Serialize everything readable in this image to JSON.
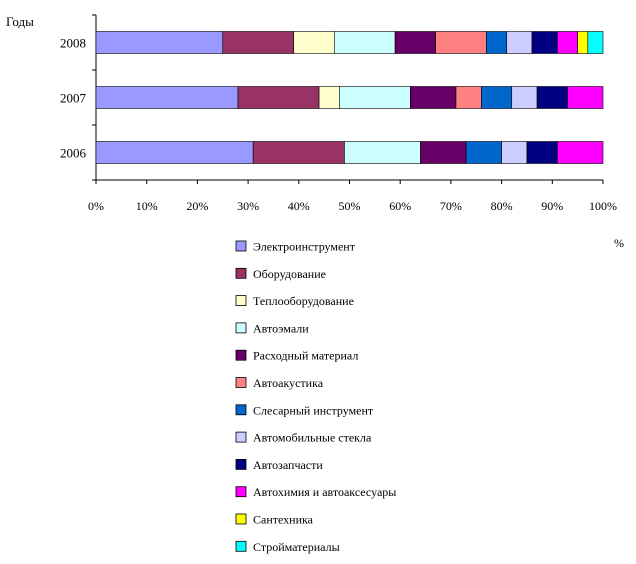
{
  "chart_data": {
    "type": "bar",
    "orientation": "horizontal",
    "stacked": "percent",
    "ylabel": "Годы",
    "xlabel": "%",
    "categories": [
      "2008",
      "2007",
      "2006"
    ],
    "x_ticks": [
      "0%",
      "10%",
      "20%",
      "30%",
      "40%",
      "50%",
      "60%",
      "70%",
      "80%",
      "90%",
      "100%"
    ],
    "xlim": [
      0,
      100
    ],
    "grid": false,
    "legend_position": "bottom",
    "series": [
      {
        "name": "Электроинструмент",
        "color": "#9999ff",
        "values": [
          25,
          28,
          31
        ]
      },
      {
        "name": "Оборудование",
        "color": "#993366",
        "values": [
          14,
          16,
          18
        ]
      },
      {
        "name": "Теплооборудование",
        "color": "#ffffcc",
        "values": [
          8,
          4,
          0
        ]
      },
      {
        "name": "Автоэмали",
        "color": "#ccffff",
        "values": [
          12,
          14,
          15
        ]
      },
      {
        "name": "Расходный материал",
        "color": "#660066",
        "values": [
          8,
          9,
          9
        ]
      },
      {
        "name": "Автоакустика",
        "color": "#ff8080",
        "values": [
          10,
          5,
          0
        ]
      },
      {
        "name": "Слесарный инструмент",
        "color": "#0066cc",
        "values": [
          4,
          6,
          7
        ]
      },
      {
        "name": "Автомобильные стекла",
        "color": "#ccccff",
        "values": [
          5,
          5,
          5
        ]
      },
      {
        "name": "Автозапчасти",
        "color": "#000080",
        "values": [
          5,
          6,
          6
        ]
      },
      {
        "name": "Автохимия и автоаксесуары",
        "color": "#ff00ff",
        "values": [
          4,
          7,
          9
        ]
      },
      {
        "name": "Сантехника",
        "color": "#ffff00",
        "values": [
          2,
          0,
          0
        ]
      },
      {
        "name": "Стройматериалы",
        "color": "#00ffff",
        "values": [
          3,
          0,
          0
        ]
      }
    ]
  }
}
